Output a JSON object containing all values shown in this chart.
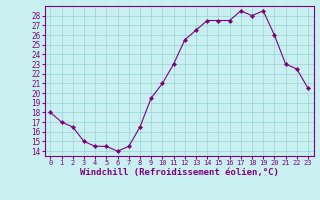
{
  "x": [
    0,
    1,
    2,
    3,
    4,
    5,
    6,
    7,
    8,
    9,
    10,
    11,
    12,
    13,
    14,
    15,
    16,
    17,
    18,
    19,
    20,
    21,
    22,
    23
  ],
  "y": [
    18,
    17,
    16.5,
    15,
    14.5,
    14.5,
    14,
    14.5,
    16.5,
    19.5,
    21,
    23,
    25.5,
    26.5,
    27.5,
    27.5,
    27.5,
    28.5,
    28,
    28.5,
    26,
    23,
    22.5,
    20.5
  ],
  "line_color": "#800080",
  "marker": "D",
  "marker_size": 2.0,
  "bg_color": "#c8f0f0",
  "grid_color": "#a0d8d8",
  "xlabel": "Windchill (Refroidissement éolien,°C)",
  "xlim": [
    -0.5,
    23.5
  ],
  "ylim_min": 13.5,
  "ylim_max": 29.0,
  "yticks": [
    14,
    15,
    16,
    17,
    18,
    19,
    20,
    21,
    22,
    23,
    24,
    25,
    26,
    27,
    28
  ],
  "xtick_labels": [
    "0",
    "1",
    "2",
    "3",
    "4",
    "5",
    "6",
    "7",
    "8",
    "9",
    "10",
    "11",
    "12",
    "13",
    "14",
    "15",
    "16",
    "17",
    "18",
    "19",
    "20",
    "21",
    "22",
    "23"
  ],
  "tick_color": "#800080",
  "xlabel_color": "#800080",
  "axis_color": "#800080",
  "spine_color": "#800080"
}
